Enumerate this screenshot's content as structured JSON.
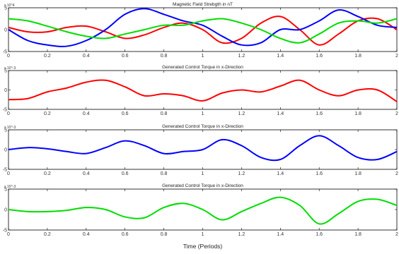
{
  "figure": {
    "xlabel": "Time (Periods)"
  },
  "chart_data": [
    {
      "type": "line",
      "title": "Magnetic Field Strebgth in nT",
      "exponent_label": "x 10^4",
      "xlim": [
        0,
        2
      ],
      "ylim": [
        -5,
        5
      ],
      "xticks": [
        "0",
        "0.2",
        "0.4",
        "0.6",
        "0.8",
        "1",
        "1.2",
        "1.4",
        "1.6",
        "1.8",
        "2"
      ],
      "yticks": [
        "5",
        "0",
        "-5"
      ],
      "ytick_values": [
        5,
        0,
        -5
      ],
      "x": [
        0,
        0.1,
        0.2,
        0.3,
        0.4,
        0.5,
        0.6,
        0.7,
        0.8,
        0.9,
        1.0,
        1.1,
        1.2,
        1.3,
        1.4,
        1.5,
        1.6,
        1.7,
        1.8,
        1.9,
        2.0
      ],
      "series": [
        {
          "color": "#ff0000",
          "values": [
            0.5,
            -0.5,
            -0.5,
            0.5,
            0.8,
            -0.5,
            -2.0,
            -1.2,
            0.5,
            1.5,
            0.0,
            -3.0,
            -2.0,
            1.5,
            3.0,
            0.0,
            -3.5,
            -1.0,
            2.0,
            2.5,
            0.0
          ]
        },
        {
          "color": "#0000ff",
          "values": [
            0.0,
            -2.5,
            -3.5,
            -3.8,
            -2.5,
            0.0,
            3.5,
            4.8,
            3.5,
            2.0,
            1.0,
            -1.5,
            -3.5,
            -3.0,
            0.0,
            0.0,
            2.0,
            4.5,
            3.0,
            1.0,
            0.5
          ]
        },
        {
          "color": "#00dd00",
          "values": [
            2.5,
            2.0,
            0.8,
            -0.5,
            -1.5,
            -2.0,
            -1.0,
            0.0,
            1.0,
            1.0,
            2.0,
            2.5,
            1.5,
            0.0,
            -2.0,
            -3.0,
            -1.0,
            1.5,
            2.0,
            1.5,
            2.5
          ]
        }
      ]
    },
    {
      "type": "line",
      "title": "Generated Control Torque in x-Direction",
      "exponent_label": "x 10^-3",
      "xlim": [
        0,
        2
      ],
      "ylim": [
        -5,
        5
      ],
      "xticks": [
        "0",
        "0.2",
        "0.4",
        "0.6",
        "0.8",
        "1",
        "1.2",
        "1.4",
        "1.6",
        "1.8",
        "2"
      ],
      "yticks": [
        "5",
        "0",
        "-5"
      ],
      "ytick_values": [
        5,
        0,
        -5
      ],
      "x": [
        0,
        0.1,
        0.2,
        0.3,
        0.4,
        0.5,
        0.6,
        0.7,
        0.8,
        0.9,
        1.0,
        1.1,
        1.2,
        1.3,
        1.4,
        1.5,
        1.6,
        1.7,
        1.8,
        1.9,
        2.0
      ],
      "series": [
        {
          "color": "#ff0000",
          "values": [
            -2.5,
            -2.2,
            -0.5,
            0.5,
            2.0,
            2.5,
            0.8,
            -1.5,
            -1.0,
            -1.5,
            -2.8,
            -0.8,
            0.0,
            -0.5,
            1.0,
            2.5,
            0.0,
            -1.5,
            0.0,
            0.0,
            -3.0
          ]
        }
      ]
    },
    {
      "type": "line",
      "title": "Generated Control Torque in x-Direction",
      "exponent_label": "x 10^-3",
      "xlim": [
        0,
        2
      ],
      "ylim": [
        -5,
        5
      ],
      "xticks": [
        "0",
        "0.2",
        "0.4",
        "0.6",
        "0.8",
        "1",
        "1.2",
        "1.4",
        "1.6",
        "1.8",
        "2"
      ],
      "yticks": [
        "5",
        "0",
        "-5"
      ],
      "ytick_values": [
        5,
        0,
        -5
      ],
      "x": [
        0,
        0.1,
        0.2,
        0.3,
        0.4,
        0.5,
        0.6,
        0.7,
        0.8,
        0.9,
        1.0,
        1.1,
        1.2,
        1.3,
        1.4,
        1.5,
        1.6,
        1.7,
        1.8,
        1.9,
        2.0
      ],
      "series": [
        {
          "color": "#0000ff",
          "values": [
            0.0,
            0.5,
            0.2,
            -0.5,
            -1.0,
            0.5,
            2.2,
            1.0,
            -1.0,
            -0.5,
            0.0,
            2.5,
            1.0,
            -2.0,
            -2.5,
            1.0,
            3.5,
            1.0,
            -2.0,
            -2.5,
            -0.5
          ]
        }
      ]
    },
    {
      "type": "line",
      "title": "Generated Control Torque in x-Direction",
      "exponent_label": "x 10^-3",
      "xlim": [
        0,
        2
      ],
      "ylim": [
        -5,
        5
      ],
      "xticks": [
        "0",
        "0.2",
        "0.4",
        "0.6",
        "0.8",
        "1",
        "1.2",
        "1.4",
        "1.6",
        "1.8",
        "2"
      ],
      "yticks": [
        "5",
        "0",
        "-5"
      ],
      "ytick_values": [
        5,
        0,
        -5
      ],
      "x": [
        0,
        0.1,
        0.2,
        0.3,
        0.4,
        0.5,
        0.6,
        0.7,
        0.8,
        0.9,
        1.0,
        1.1,
        1.2,
        1.3,
        1.4,
        1.5,
        1.6,
        1.7,
        1.8,
        1.9,
        2.0
      ],
      "series": [
        {
          "color": "#00dd00",
          "values": [
            0.0,
            -0.5,
            -0.5,
            -0.2,
            0.5,
            0.0,
            -1.8,
            -2.0,
            0.5,
            1.5,
            0.0,
            -2.5,
            -0.5,
            1.5,
            3.0,
            1.0,
            -3.5,
            -1.0,
            2.0,
            2.5,
            1.0
          ]
        }
      ]
    }
  ]
}
